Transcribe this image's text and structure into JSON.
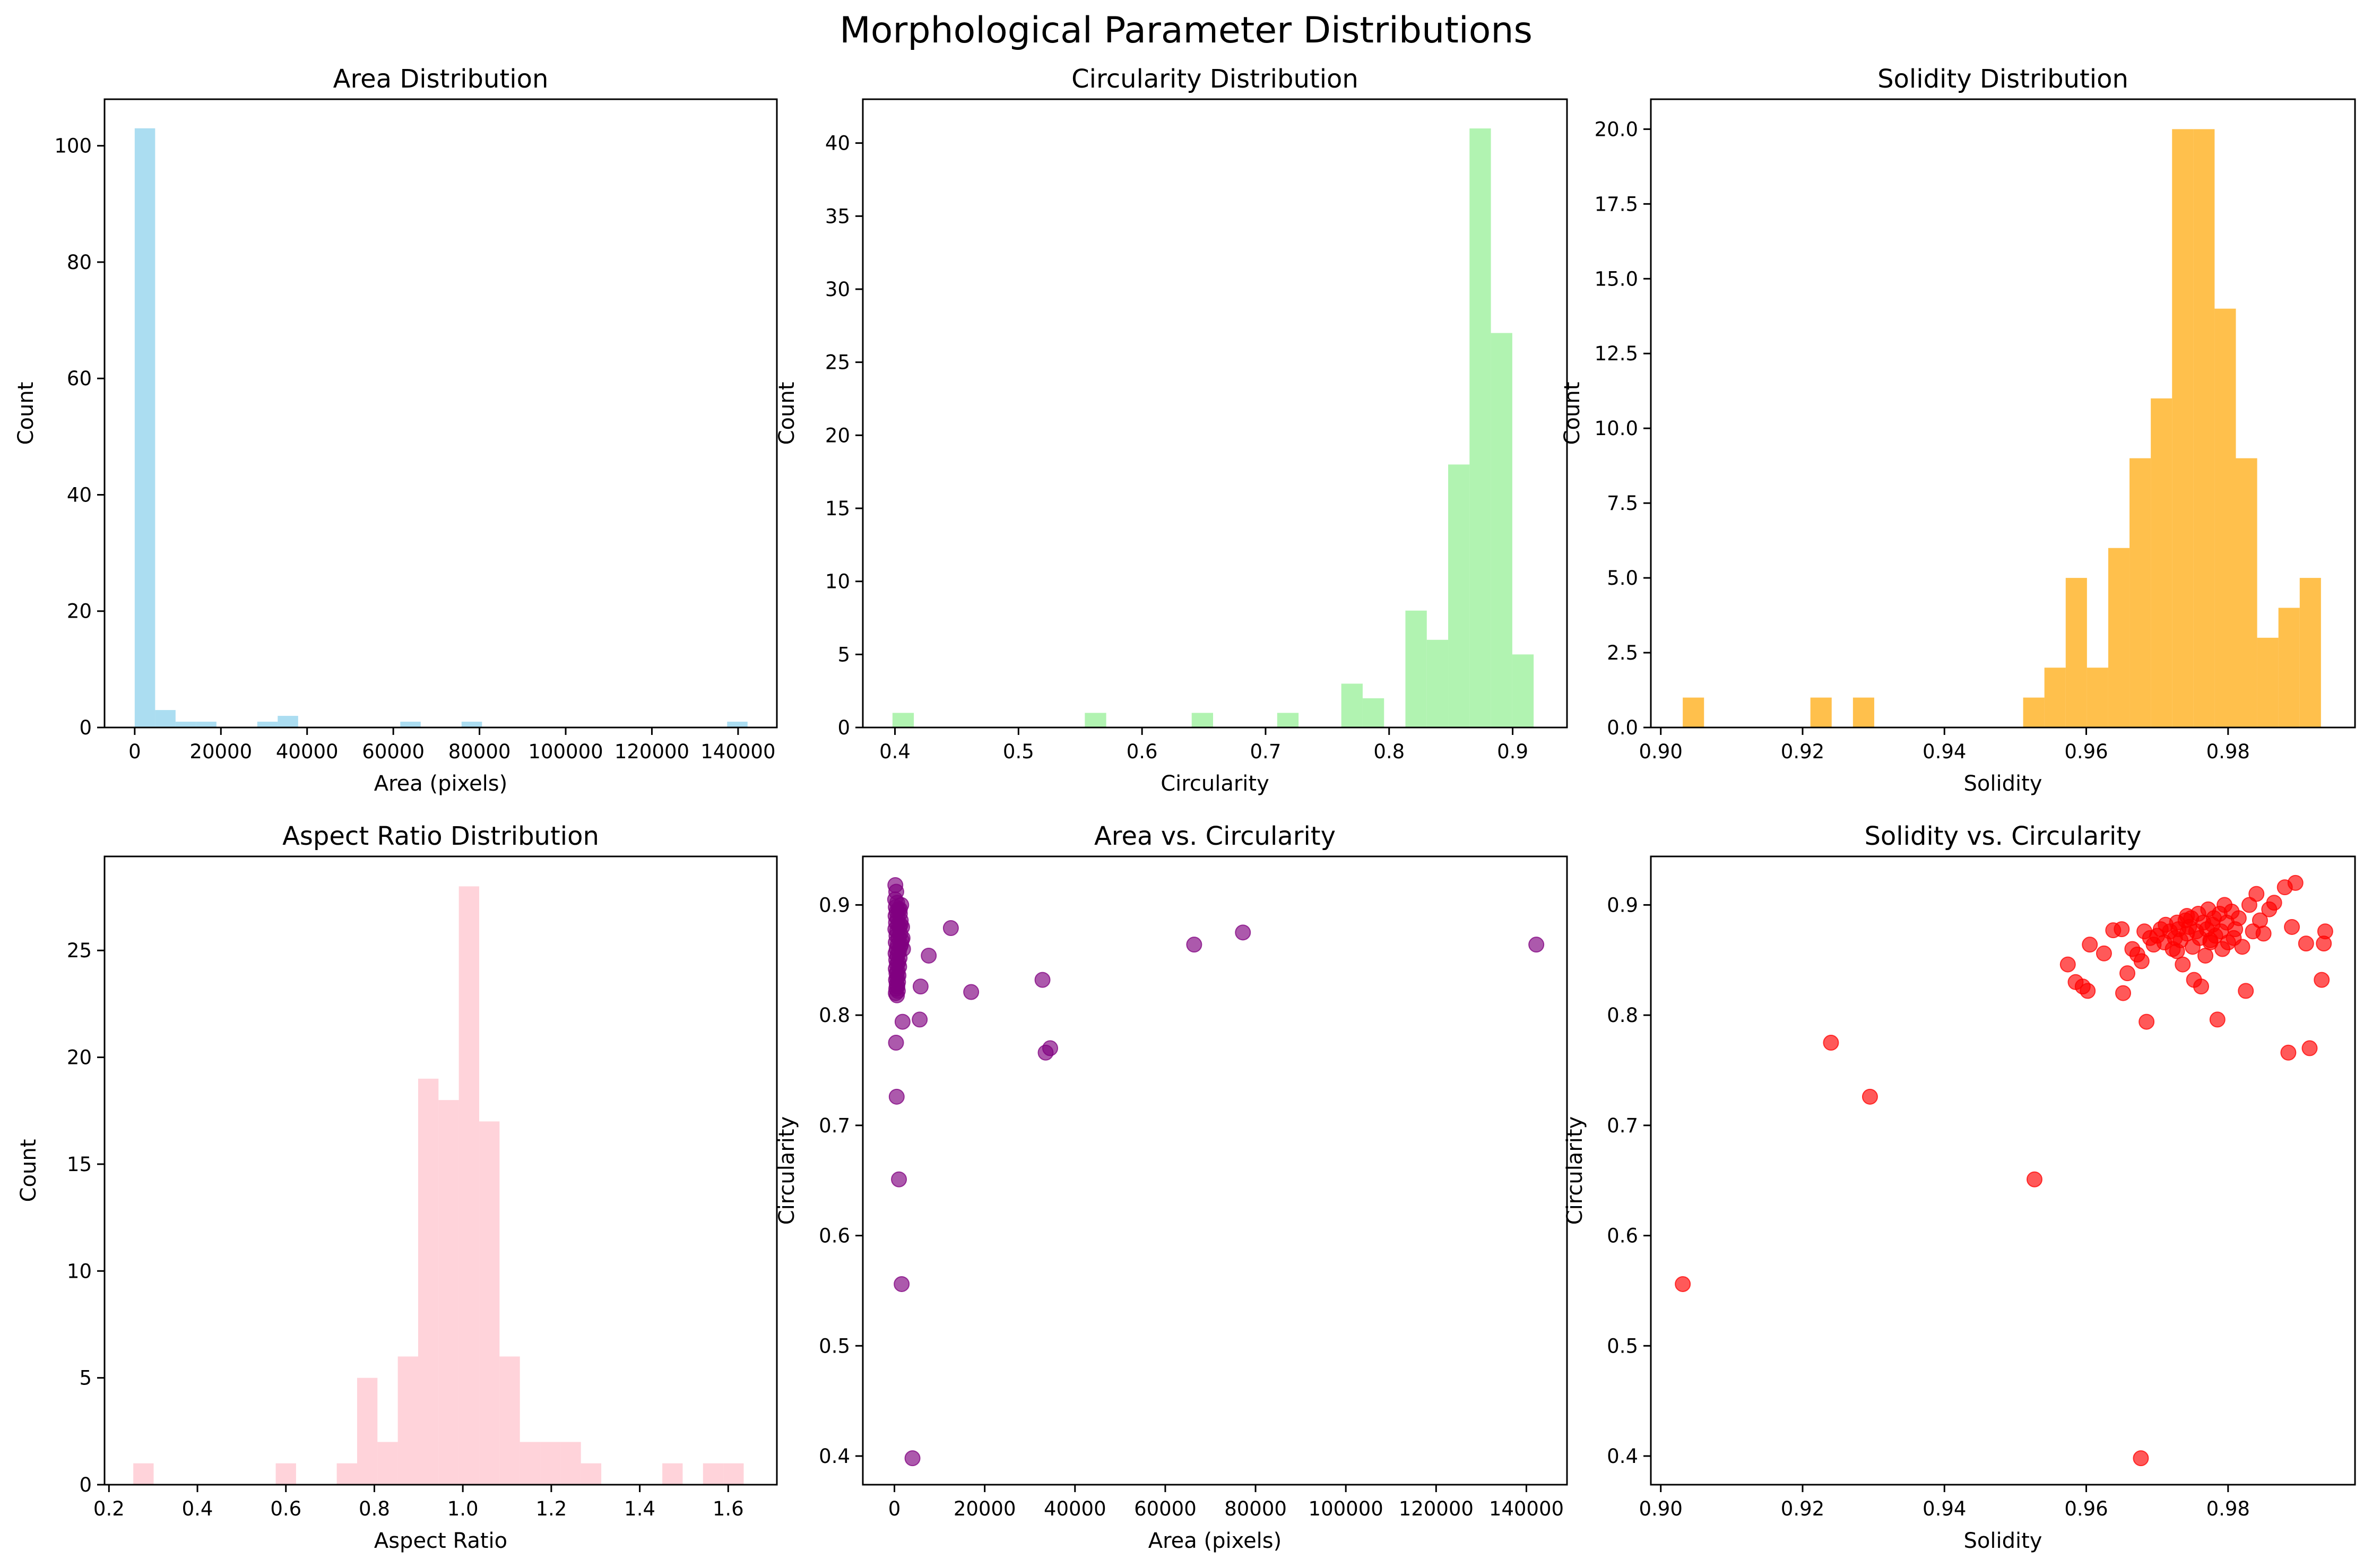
{
  "figure": {
    "title": "Morphological Parameter Distributions"
  },
  "chart_data": [
    {
      "type": "bar",
      "subtype": "histogram",
      "title": "Area Distribution",
      "xlabel": "Area (pixels)",
      "ylabel": "Count",
      "color": "#87ceeb",
      "alpha": 0.7,
      "xlim": [
        -7000,
        149000
      ],
      "ylim": [
        0,
        108
      ],
      "xticks": [
        0,
        20000,
        40000,
        60000,
        80000,
        100000,
        120000,
        140000
      ],
      "xtick_labels": [
        "0",
        "20000",
        "40000",
        "60000",
        "80000",
        "100000",
        "120000",
        "140000"
      ],
      "yticks": [
        0,
        20,
        40,
        60,
        80,
        100
      ],
      "ytick_labels": [
        "0",
        "20",
        "40",
        "60",
        "80",
        "100"
      ],
      "bins": [
        {
          "x0": 0,
          "x1": 4740,
          "count": 103
        },
        {
          "x0": 4740,
          "x1": 9480,
          "count": 3
        },
        {
          "x0": 9480,
          "x1": 14220,
          "count": 1
        },
        {
          "x0": 14220,
          "x1": 18960,
          "count": 1
        },
        {
          "x0": 28440,
          "x1": 33180,
          "count": 1
        },
        {
          "x0": 33180,
          "x1": 37920,
          "count": 2
        },
        {
          "x0": 61620,
          "x1": 66360,
          "count": 1
        },
        {
          "x0": 75840,
          "x1": 80580,
          "count": 1
        },
        {
          "x0": 137460,
          "x1": 142200,
          "count": 1
        }
      ],
      "grid": false
    },
    {
      "type": "bar",
      "subtype": "histogram",
      "title": "Circularity Distribution",
      "xlabel": "Circularity",
      "ylabel": "Count",
      "color": "#90ee90",
      "alpha": 0.7,
      "xlim": [
        0.374,
        0.944
      ],
      "ylim": [
        0,
        43
      ],
      "xticks": [
        0.4,
        0.5,
        0.6,
        0.7,
        0.8,
        0.9
      ],
      "xtick_labels": [
        "0.4",
        "0.5",
        "0.6",
        "0.7",
        "0.8",
        "0.9"
      ],
      "yticks": [
        0,
        5,
        10,
        15,
        20,
        25,
        30,
        35,
        40
      ],
      "ytick_labels": [
        "0",
        "5",
        "10",
        "15",
        "20",
        "25",
        "30",
        "35",
        "40"
      ],
      "bins": [
        {
          "x0": 0.398,
          "x1": 0.4153,
          "count": 1
        },
        {
          "x0": 0.5537,
          "x1": 0.571,
          "count": 1
        },
        {
          "x0": 0.6402,
          "x1": 0.6575,
          "count": 1
        },
        {
          "x0": 0.7094,
          "x1": 0.7267,
          "count": 1
        },
        {
          "x0": 0.7613,
          "x1": 0.7786,
          "count": 3
        },
        {
          "x0": 0.7786,
          "x1": 0.7959,
          "count": 2
        },
        {
          "x0": 0.8132,
          "x1": 0.8305,
          "count": 8
        },
        {
          "x0": 0.8305,
          "x1": 0.8478,
          "count": 6
        },
        {
          "x0": 0.8478,
          "x1": 0.8651,
          "count": 18
        },
        {
          "x0": 0.8651,
          "x1": 0.8824,
          "count": 41
        },
        {
          "x0": 0.8824,
          "x1": 0.8997,
          "count": 27
        },
        {
          "x0": 0.8997,
          "x1": 0.917,
          "count": 5
        }
      ],
      "grid": false
    },
    {
      "type": "bar",
      "subtype": "histogram",
      "title": "Solidity Distribution",
      "xlabel": "Solidity",
      "ylabel": "Count",
      "color": "#ffa500",
      "alpha": 0.7,
      "xlim": [
        0.8986,
        0.9979
      ],
      "ylim": [
        0,
        21
      ],
      "xticks": [
        0.9,
        0.92,
        0.94,
        0.96,
        0.98
      ],
      "xtick_labels": [
        "0.90",
        "0.92",
        "0.94",
        "0.96",
        "0.98"
      ],
      "yticks": [
        0,
        2.5,
        5,
        7.5,
        10,
        12.5,
        15,
        17.5,
        20
      ],
      "ytick_labels": [
        "0.0",
        "2.5",
        "5.0",
        "7.5",
        "10.0",
        "12.5",
        "15.0",
        "17.5",
        "20.0"
      ],
      "bins": [
        {
          "x0": 0.9031,
          "x1": 0.9061,
          "count": 1
        },
        {
          "x0": 0.9211,
          "x1": 0.9241,
          "count": 1
        },
        {
          "x0": 0.9271,
          "x1": 0.9301,
          "count": 1
        },
        {
          "x0": 0.9511,
          "x1": 0.9541,
          "count": 1
        },
        {
          "x0": 0.9541,
          "x1": 0.9571,
          "count": 2
        },
        {
          "x0": 0.9571,
          "x1": 0.9601,
          "count": 5
        },
        {
          "x0": 0.9601,
          "x1": 0.9631,
          "count": 2
        },
        {
          "x0": 0.9631,
          "x1": 0.9661,
          "count": 6
        },
        {
          "x0": 0.9661,
          "x1": 0.9691,
          "count": 9
        },
        {
          "x0": 0.9691,
          "x1": 0.9721,
          "count": 11
        },
        {
          "x0": 0.9721,
          "x1": 0.9751,
          "count": 20
        },
        {
          "x0": 0.9751,
          "x1": 0.9781,
          "count": 20
        },
        {
          "x0": 0.9781,
          "x1": 0.9811,
          "count": 14
        },
        {
          "x0": 0.9811,
          "x1": 0.9841,
          "count": 9
        },
        {
          "x0": 0.9841,
          "x1": 0.9871,
          "count": 3
        },
        {
          "x0": 0.9871,
          "x1": 0.9901,
          "count": 4
        },
        {
          "x0": 0.9901,
          "x1": 0.9931,
          "count": 5
        }
      ],
      "grid": false
    },
    {
      "type": "bar",
      "subtype": "histogram",
      "title": "Aspect Ratio Distribution",
      "xlabel": "Aspect Ratio",
      "ylabel": "Count",
      "color": "#ffc0cb",
      "alpha": 0.7,
      "xlim": [
        0.19,
        1.71
      ],
      "ylim": [
        0,
        29.4
      ],
      "xticks": [
        0.2,
        0.4,
        0.6,
        0.8,
        1.0,
        1.2,
        1.4,
        1.6
      ],
      "xtick_labels": [
        "0.2",
        "0.4",
        "0.6",
        "0.8",
        "1.0",
        "1.2",
        "1.4",
        "1.6"
      ],
      "yticks": [
        0,
        5,
        10,
        15,
        20,
        25
      ],
      "ytick_labels": [
        "0",
        "5",
        "10",
        "15",
        "20",
        "25"
      ],
      "bins": [
        {
          "x0": 0.255,
          "x1": 0.301,
          "count": 1
        },
        {
          "x0": 0.577,
          "x1": 0.623,
          "count": 1
        },
        {
          "x0": 0.715,
          "x1": 0.761,
          "count": 1
        },
        {
          "x0": 0.761,
          "x1": 0.807,
          "count": 5
        },
        {
          "x0": 0.807,
          "x1": 0.853,
          "count": 2
        },
        {
          "x0": 0.853,
          "x1": 0.899,
          "count": 6
        },
        {
          "x0": 0.899,
          "x1": 0.945,
          "count": 19
        },
        {
          "x0": 0.945,
          "x1": 0.991,
          "count": 18
        },
        {
          "x0": 0.991,
          "x1": 1.037,
          "count": 28
        },
        {
          "x0": 1.037,
          "x1": 1.083,
          "count": 17
        },
        {
          "x0": 1.083,
          "x1": 1.129,
          "count": 6
        },
        {
          "x0": 1.129,
          "x1": 1.175,
          "count": 2
        },
        {
          "x0": 1.175,
          "x1": 1.221,
          "count": 2
        },
        {
          "x0": 1.221,
          "x1": 1.267,
          "count": 2
        },
        {
          "x0": 1.267,
          "x1": 1.313,
          "count": 1
        },
        {
          "x0": 1.451,
          "x1": 1.497,
          "count": 1
        },
        {
          "x0": 1.543,
          "x1": 1.589,
          "count": 1
        },
        {
          "x0": 1.589,
          "x1": 1.635,
          "count": 1
        }
      ],
      "grid": false
    },
    {
      "type": "scatter",
      "title": "Area vs. Circularity",
      "xlabel": "Area (pixels)",
      "ylabel": "Circularity",
      "color": "#800080",
      "alpha": 0.65,
      "xlim": [
        -7000,
        149000
      ],
      "ylim": [
        0.374,
        0.944
      ],
      "xticks": [
        0,
        20000,
        40000,
        60000,
        80000,
        100000,
        120000,
        140000
      ],
      "xtick_labels": [
        "0",
        "20000",
        "40000",
        "60000",
        "80000",
        "100000",
        "120000",
        "140000"
      ],
      "yticks": [
        0.4,
        0.5,
        0.6,
        0.7,
        0.8,
        0.9
      ],
      "ytick_labels": [
        "0.4",
        "0.5",
        "0.6",
        "0.7",
        "0.8",
        "0.9"
      ],
      "points": [
        [
          200,
          0.918
        ],
        [
          400,
          0.912
        ],
        [
          150,
          0.905
        ],
        [
          600,
          0.902
        ],
        [
          300,
          0.898
        ],
        [
          900,
          0.896
        ],
        [
          500,
          0.894
        ],
        [
          1200,
          0.892
        ],
        [
          250,
          0.89
        ],
        [
          700,
          0.888
        ],
        [
          1400,
          0.886
        ],
        [
          350,
          0.884
        ],
        [
          800,
          0.882
        ],
        [
          1100,
          0.88
        ],
        [
          200,
          0.878
        ],
        [
          600,
          0.876
        ],
        [
          1300,
          0.874
        ],
        [
          450,
          0.872
        ],
        [
          950,
          0.87
        ],
        [
          1600,
          0.868
        ],
        [
          300,
          0.866
        ],
        [
          750,
          0.864
        ],
        [
          1250,
          0.862
        ],
        [
          500,
          0.86
        ],
        [
          1000,
          0.858
        ],
        [
          250,
          0.856
        ],
        [
          650,
          0.854
        ],
        [
          1150,
          0.852
        ],
        [
          400,
          0.85
        ],
        [
          850,
          0.848
        ],
        [
          550,
          0.846
        ],
        [
          1050,
          0.844
        ],
        [
          300,
          0.842
        ],
        [
          700,
          0.84
        ],
        [
          450,
          0.838
        ],
        [
          900,
          0.836
        ],
        [
          600,
          0.834
        ],
        [
          350,
          0.832
        ],
        [
          800,
          0.83
        ],
        [
          500,
          0.828
        ],
        [
          650,
          0.826
        ],
        [
          400,
          0.824
        ],
        [
          750,
          0.822
        ],
        [
          300,
          0.82
        ],
        [
          550,
          0.818
        ],
        [
          1500,
          0.9
        ],
        [
          1700,
          0.88
        ],
        [
          1800,
          0.87
        ],
        [
          1900,
          0.86
        ],
        [
          1200,
          0.896
        ],
        [
          1350,
          0.882
        ],
        [
          1450,
          0.864
        ],
        [
          350,
          0.775
        ],
        [
          500,
          0.726
        ],
        [
          1000,
          0.651
        ],
        [
          1600,
          0.556
        ],
        [
          4000,
          0.398
        ],
        [
          1800,
          0.794
        ],
        [
          5600,
          0.796
        ],
        [
          5800,
          0.826
        ],
        [
          7600,
          0.854
        ],
        [
          12500,
          0.879
        ],
        [
          17000,
          0.821
        ],
        [
          32800,
          0.832
        ],
        [
          33500,
          0.766
        ],
        [
          34500,
          0.77
        ],
        [
          66400,
          0.864
        ],
        [
          77200,
          0.875
        ],
        [
          142200,
          0.864
        ]
      ],
      "grid": false
    },
    {
      "type": "scatter",
      "title": "Solidity vs. Circularity",
      "xlabel": "Solidity",
      "ylabel": "Circularity",
      "color": "#ff0000",
      "alpha": 0.65,
      "xlim": [
        0.8986,
        0.9979
      ],
      "ylim": [
        0.374,
        0.944
      ],
      "xticks": [
        0.9,
        0.92,
        0.94,
        0.96,
        0.98
      ],
      "xtick_labels": [
        "0.90",
        "0.92",
        "0.94",
        "0.96",
        "0.98"
      ],
      "yticks": [
        0.4,
        0.5,
        0.6,
        0.7,
        0.8,
        0.9
      ],
      "ytick_labels": [
        "0.4",
        "0.5",
        "0.6",
        "0.7",
        "0.8",
        "0.9"
      ],
      "points": [
        [
          0.9031,
          0.556
        ],
        [
          0.924,
          0.775
        ],
        [
          0.9295,
          0.726
        ],
        [
          0.9527,
          0.651
        ],
        [
          0.9677,
          0.398
        ],
        [
          0.9574,
          0.846
        ],
        [
          0.9585,
          0.83
        ],
        [
          0.9595,
          0.826
        ],
        [
          0.9602,
          0.822
        ],
        [
          0.9605,
          0.864
        ],
        [
          0.9625,
          0.856
        ],
        [
          0.9638,
          0.877
        ],
        [
          0.965,
          0.878
        ],
        [
          0.9652,
          0.82
        ],
        [
          0.9658,
          0.838
        ],
        [
          0.9665,
          0.86
        ],
        [
          0.9672,
          0.855
        ],
        [
          0.9678,
          0.849
        ],
        [
          0.9685,
          0.794
        ],
        [
          0.9682,
          0.876
        ],
        [
          0.969,
          0.87
        ],
        [
          0.9695,
          0.864
        ],
        [
          0.97,
          0.872
        ],
        [
          0.9705,
          0.878
        ],
        [
          0.971,
          0.866
        ],
        [
          0.9712,
          0.882
        ],
        [
          0.9718,
          0.876
        ],
        [
          0.9722,
          0.86
        ],
        [
          0.9725,
          0.87
        ],
        [
          0.9728,
          0.884
        ],
        [
          0.973,
          0.878
        ],
        [
          0.9733,
          0.868
        ],
        [
          0.9736,
          0.846
        ],
        [
          0.974,
          0.886
        ],
        [
          0.9742,
          0.874
        ],
        [
          0.9745,
          0.88
        ],
        [
          0.9748,
          0.888
        ],
        [
          0.975,
          0.862
        ],
        [
          0.9752,
          0.832
        ],
        [
          0.9755,
          0.876
        ],
        [
          0.9758,
          0.892
        ],
        [
          0.976,
          0.87
        ],
        [
          0.9762,
          0.826
        ],
        [
          0.9765,
          0.884
        ],
        [
          0.9768,
          0.854
        ],
        [
          0.977,
          0.878
        ],
        [
          0.9772,
          0.896
        ],
        [
          0.9775,
          0.866
        ],
        [
          0.9778,
          0.882
        ],
        [
          0.978,
          0.888
        ],
        [
          0.9782,
          0.872
        ],
        [
          0.9785,
          0.796
        ],
        [
          0.9788,
          0.892
        ],
        [
          0.979,
          0.876
        ],
        [
          0.9792,
          0.86
        ],
        [
          0.9795,
          0.9
        ],
        [
          0.9798,
          0.884
        ],
        [
          0.98,
          0.866
        ],
        [
          0.9805,
          0.894
        ],
        [
          0.981,
          0.878
        ],
        [
          0.9815,
          0.888
        ],
        [
          0.982,
          0.862
        ],
        [
          0.9825,
          0.822
        ],
        [
          0.983,
          0.9
        ],
        [
          0.9835,
          0.876
        ],
        [
          0.984,
          0.91
        ],
        [
          0.9845,
          0.886
        ],
        [
          0.985,
          0.874
        ],
        [
          0.9858,
          0.896
        ],
        [
          0.9865,
          0.902
        ],
        [
          0.988,
          0.916
        ],
        [
          0.9885,
          0.766
        ],
        [
          0.989,
          0.88
        ],
        [
          0.9895,
          0.92
        ],
        [
          0.991,
          0.865
        ],
        [
          0.9915,
          0.77
        ],
        [
          0.9932,
          0.832
        ],
        [
          0.9935,
          0.865
        ],
        [
          0.9937,
          0.876
        ],
        [
          0.9775,
          0.868
        ],
        [
          0.9742,
          0.89
        ],
        [
          0.9728,
          0.858
        ],
        [
          0.9808,
          0.87
        ]
      ],
      "grid": false
    }
  ]
}
